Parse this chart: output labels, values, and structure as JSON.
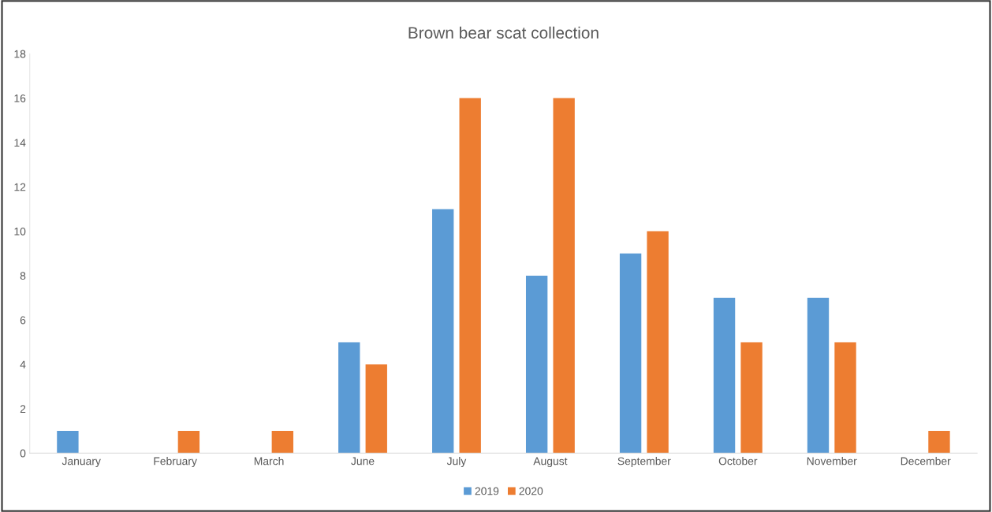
{
  "chart_data": {
    "type": "bar",
    "title": "Brown bear scat collection",
    "categories": [
      "January",
      "February",
      "March",
      "June",
      "July",
      "August",
      "September",
      "October",
      "November",
      "December"
    ],
    "series": [
      {
        "name": "2019",
        "color": "#5b9bd5",
        "values": [
          1,
          null,
          null,
          5,
          11,
          8,
          9,
          7,
          7,
          null
        ]
      },
      {
        "name": "2020",
        "color": "#ed7d31",
        "values": [
          null,
          1,
          1,
          4,
          16,
          16,
          10,
          5,
          5,
          1
        ]
      }
    ],
    "ylim": [
      0,
      18
    ],
    "yticks": [
      0,
      2,
      4,
      6,
      8,
      10,
      12,
      14,
      16,
      18
    ],
    "grid": false,
    "legend": "bottom"
  }
}
